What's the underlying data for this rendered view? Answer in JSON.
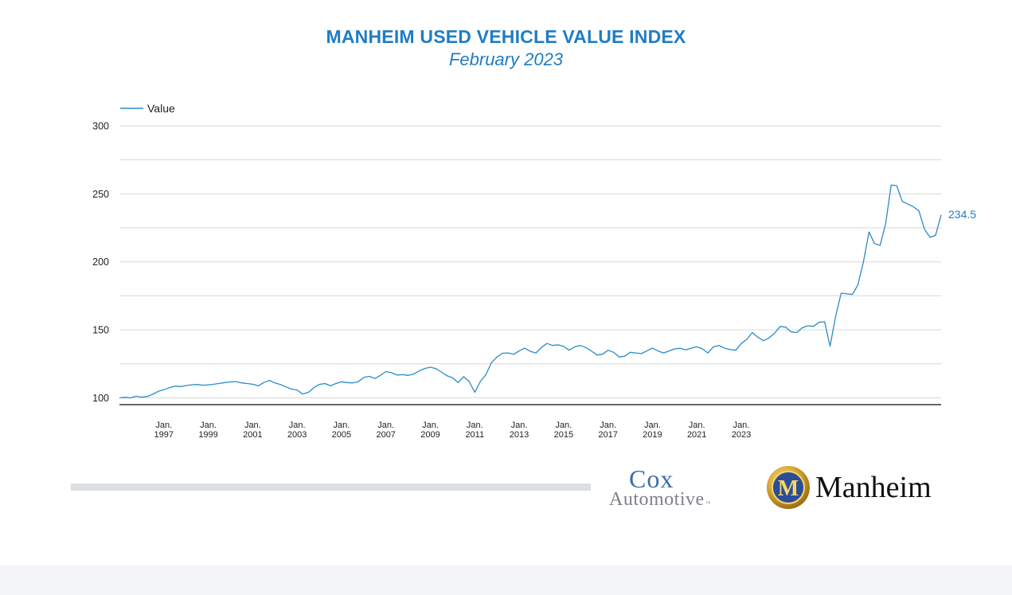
{
  "title": "MANHEIM USED VEHICLE VALUE INDEX",
  "subtitle": "February 2023",
  "chart_data": {
    "type": "line",
    "title": "MANHEIM USED VEHICLE VALUE INDEX",
    "subtitle": "February 2023",
    "xlabel": "",
    "ylabel": "",
    "ylim": [
      95,
      300
    ],
    "yticks": [
      100,
      150,
      200,
      250,
      300
    ],
    "grid": true,
    "legend_position": "top-left",
    "xtick_labels": [
      {
        "month": "Jan.",
        "year": "1997",
        "x": 1997.0
      },
      {
        "month": "Jan.",
        "year": "1999",
        "x": 1999.0
      },
      {
        "month": "Jan.",
        "year": "2001",
        "x": 2001.0
      },
      {
        "month": "Jan.",
        "year": "2003",
        "x": 2003.0
      },
      {
        "month": "Jan.",
        "year": "2005",
        "x": 2005.0
      },
      {
        "month": "Jan.",
        "year": "2007",
        "x": 2007.0
      },
      {
        "month": "Jan.",
        "year": "2009",
        "x": 2009.0
      },
      {
        "month": "Jan.",
        "year": "2011",
        "x": 2011.0
      },
      {
        "month": "Jan.",
        "year": "2013",
        "x": 2013.0
      },
      {
        "month": "Jan.",
        "year": "2015",
        "x": 2015.0
      },
      {
        "month": "Jan.",
        "year": "2017",
        "x": 2017.0
      },
      {
        "month": "Jan.",
        "year": "2019",
        "x": 2019.0
      },
      {
        "month": "Jan.",
        "year": "2021",
        "x": 2021.0
      },
      {
        "month": "Jan.",
        "year": "2023",
        "x": 2023.0
      }
    ],
    "end_label": "234.5",
    "series": [
      {
        "name": "Value",
        "color": "#2a8bc9",
        "points": [
          [
            1995.0,
            100.0
          ],
          [
            1995.25,
            100.4
          ],
          [
            1995.5,
            99.9
          ],
          [
            1995.75,
            101.2
          ],
          [
            1996.0,
            100.5
          ],
          [
            1996.25,
            101.0
          ],
          [
            1996.5,
            102.6
          ],
          [
            1996.75,
            104.8
          ],
          [
            1997.0,
            106.0
          ],
          [
            1997.25,
            107.5
          ],
          [
            1997.5,
            108.6
          ],
          [
            1997.75,
            108.3
          ],
          [
            1998.0,
            109.0
          ],
          [
            1998.25,
            109.6
          ],
          [
            1998.5,
            109.8
          ],
          [
            1998.75,
            109.3
          ],
          [
            1999.0,
            109.6
          ],
          [
            1999.25,
            110.0
          ],
          [
            1999.5,
            110.6
          ],
          [
            1999.75,
            111.2
          ],
          [
            2000.0,
            111.7
          ],
          [
            2000.25,
            111.9
          ],
          [
            2000.5,
            111.0
          ],
          [
            2000.75,
            110.5
          ],
          [
            2001.0,
            110.0
          ],
          [
            2001.25,
            108.8
          ],
          [
            2001.5,
            111.2
          ],
          [
            2001.75,
            112.8
          ],
          [
            2002.0,
            111.0
          ],
          [
            2002.25,
            109.8
          ],
          [
            2002.5,
            108.0
          ],
          [
            2002.75,
            106.5
          ],
          [
            2003.0,
            105.8
          ],
          [
            2003.25,
            102.8
          ],
          [
            2003.5,
            104.0
          ],
          [
            2003.75,
            107.5
          ],
          [
            2004.0,
            109.8
          ],
          [
            2004.25,
            110.5
          ],
          [
            2004.5,
            108.8
          ],
          [
            2004.75,
            110.5
          ],
          [
            2005.0,
            111.8
          ],
          [
            2005.25,
            111.2
          ],
          [
            2005.5,
            111.0
          ],
          [
            2005.75,
            111.8
          ],
          [
            2006.0,
            115.0
          ],
          [
            2006.25,
            115.8
          ],
          [
            2006.5,
            114.2
          ],
          [
            2006.75,
            116.5
          ],
          [
            2007.0,
            119.3
          ],
          [
            2007.25,
            118.5
          ],
          [
            2007.5,
            116.8
          ],
          [
            2007.75,
            117.0
          ],
          [
            2008.0,
            116.5
          ],
          [
            2008.25,
            117.5
          ],
          [
            2008.5,
            119.8
          ],
          [
            2008.75,
            121.6
          ],
          [
            2009.0,
            122.5
          ],
          [
            2009.25,
            121.5
          ],
          [
            2009.5,
            119.0
          ],
          [
            2009.75,
            116.2
          ],
          [
            2010.0,
            114.8
          ],
          [
            2010.25,
            111.2
          ],
          [
            2010.5,
            115.6
          ],
          [
            2010.75,
            112.0
          ],
          [
            2011.0,
            104.0
          ],
          [
            2011.25,
            112.0
          ],
          [
            2011.5,
            117.0
          ],
          [
            2011.75,
            125.8
          ],
          [
            2012.0,
            130.0
          ],
          [
            2012.25,
            132.8
          ],
          [
            2012.5,
            133.0
          ],
          [
            2012.75,
            132.0
          ],
          [
            2013.0,
            134.5
          ],
          [
            2013.25,
            136.5
          ],
          [
            2013.5,
            134.2
          ],
          [
            2013.75,
            133.0
          ],
          [
            2014.0,
            137.0
          ],
          [
            2014.25,
            140.0
          ],
          [
            2014.5,
            138.5
          ],
          [
            2014.75,
            139.0
          ],
          [
            2015.0,
            137.8
          ],
          [
            2015.25,
            135.0
          ],
          [
            2015.5,
            137.5
          ],
          [
            2015.75,
            138.5
          ],
          [
            2016.0,
            137.0
          ],
          [
            2016.25,
            134.5
          ],
          [
            2016.5,
            131.5
          ],
          [
            2016.75,
            132.0
          ],
          [
            2017.0,
            135.0
          ],
          [
            2017.25,
            133.5
          ],
          [
            2017.5,
            130.0
          ],
          [
            2017.75,
            130.6
          ],
          [
            2018.0,
            133.5
          ],
          [
            2018.25,
            133.0
          ],
          [
            2018.5,
            132.5
          ],
          [
            2018.75,
            134.5
          ],
          [
            2019.0,
            136.5
          ],
          [
            2019.25,
            134.5
          ],
          [
            2019.5,
            133.0
          ],
          [
            2019.75,
            134.5
          ],
          [
            2020.0,
            136.0
          ],
          [
            2020.25,
            136.4
          ],
          [
            2020.5,
            135.3
          ],
          [
            2020.75,
            136.5
          ],
          [
            2021.0,
            137.5
          ],
          [
            2021.25,
            136.0
          ],
          [
            2021.5,
            133.0
          ],
          [
            2021.75,
            137.5
          ],
          [
            2022.0,
            138.5
          ],
          [
            2022.25,
            136.5
          ],
          [
            2022.5,
            135.5
          ],
          [
            2022.75,
            135.0
          ],
          [
            2023.0,
            140.0
          ],
          [
            2023.25,
            143.0
          ],
          [
            2023.5,
            148.0
          ],
          [
            2023.75,
            144.5
          ],
          [
            2024.0,
            142.0
          ],
          [
            2024.25,
            144.0
          ],
          [
            2024.5,
            147.5
          ],
          [
            2024.75,
            152.5
          ],
          [
            2025.0,
            152.0
          ],
          [
            2025.25,
            148.5
          ],
          [
            2025.5,
            148.0
          ],
          [
            2025.75,
            151.5
          ],
          [
            2026.0,
            153.0
          ],
          [
            2026.25,
            152.5
          ],
          [
            2026.5,
            155.5
          ],
          [
            2026.75,
            156.0
          ],
          [
            2027.0,
            138.0
          ],
          [
            2027.25,
            160.0
          ],
          [
            2027.5,
            177.0
          ],
          [
            2027.75,
            176.5
          ],
          [
            2028.0,
            176.0
          ],
          [
            2028.25,
            183.0
          ],
          [
            2028.5,
            200.0
          ],
          [
            2028.75,
            222.0
          ],
          [
            2029.0,
            213.5
          ],
          [
            2029.25,
            212.0
          ],
          [
            2029.5,
            228.0
          ],
          [
            2029.75,
            256.5
          ],
          [
            2030.0,
            256.0
          ],
          [
            2030.25,
            244.5
          ],
          [
            2030.5,
            242.5
          ],
          [
            2030.75,
            240.5
          ],
          [
            2031.0,
            237.5
          ],
          [
            2031.25,
            224.0
          ],
          [
            2031.5,
            218.0
          ],
          [
            2031.75,
            219.5
          ],
          [
            2032.0,
            234.5
          ]
        ]
      }
    ]
  },
  "logos": {
    "cox_line1": "Cox",
    "cox_line2": "Automotive",
    "cox_tm": "™",
    "manheim_word": "Manheim",
    "manheim_emblem_letter": "M"
  }
}
